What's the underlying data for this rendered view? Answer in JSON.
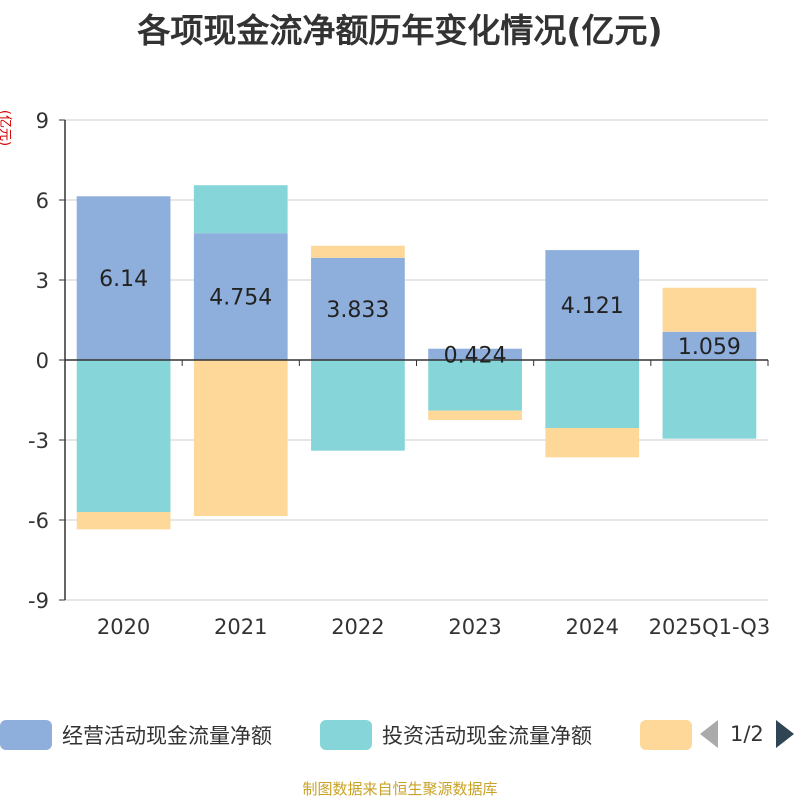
{
  "title": "各项现金流净额历年变化情况(亿元)",
  "unit_label": "(亿元)",
  "legend": {
    "items": [
      {
        "label": "经营活动现金流量净额",
        "color": "#8eaedb"
      },
      {
        "label": "投资活动现金流量净额",
        "color": "#86d5d8"
      },
      {
        "label": "",
        "color": "#fdd899"
      }
    ],
    "page": "1/2"
  },
  "footer": "制图数据来自恒生聚源数据库",
  "chart_data": {
    "type": "bar",
    "stacked": true,
    "categories": [
      "2020",
      "2021",
      "2022",
      "2023",
      "2024",
      "2025Q1-Q3"
    ],
    "ylim": [
      -9,
      9
    ],
    "yticks": [
      -9,
      -6,
      -3,
      0,
      3,
      6,
      9
    ],
    "grid": true,
    "legend_position": "bottom",
    "series": [
      {
        "name": "经营活动现金流量净额",
        "color": "#8eaedb",
        "values": [
          6.14,
          4.754,
          3.833,
          0.424,
          4.121,
          1.059
        ],
        "labels": [
          "6.14",
          "4.754",
          "3.833",
          "0.424",
          "4.121",
          "1.059"
        ]
      },
      {
        "name": "投资活动现金流量净额",
        "color": "#86d5d8",
        "values": [
          -5.7,
          1.8,
          -3.4,
          -1.9,
          -2.55,
          -2.95
        ]
      },
      {
        "name": "",
        "color": "#fdd899",
        "values": [
          -0.65,
          -5.85,
          0.45,
          -0.35,
          -1.1,
          1.65
        ]
      }
    ]
  }
}
